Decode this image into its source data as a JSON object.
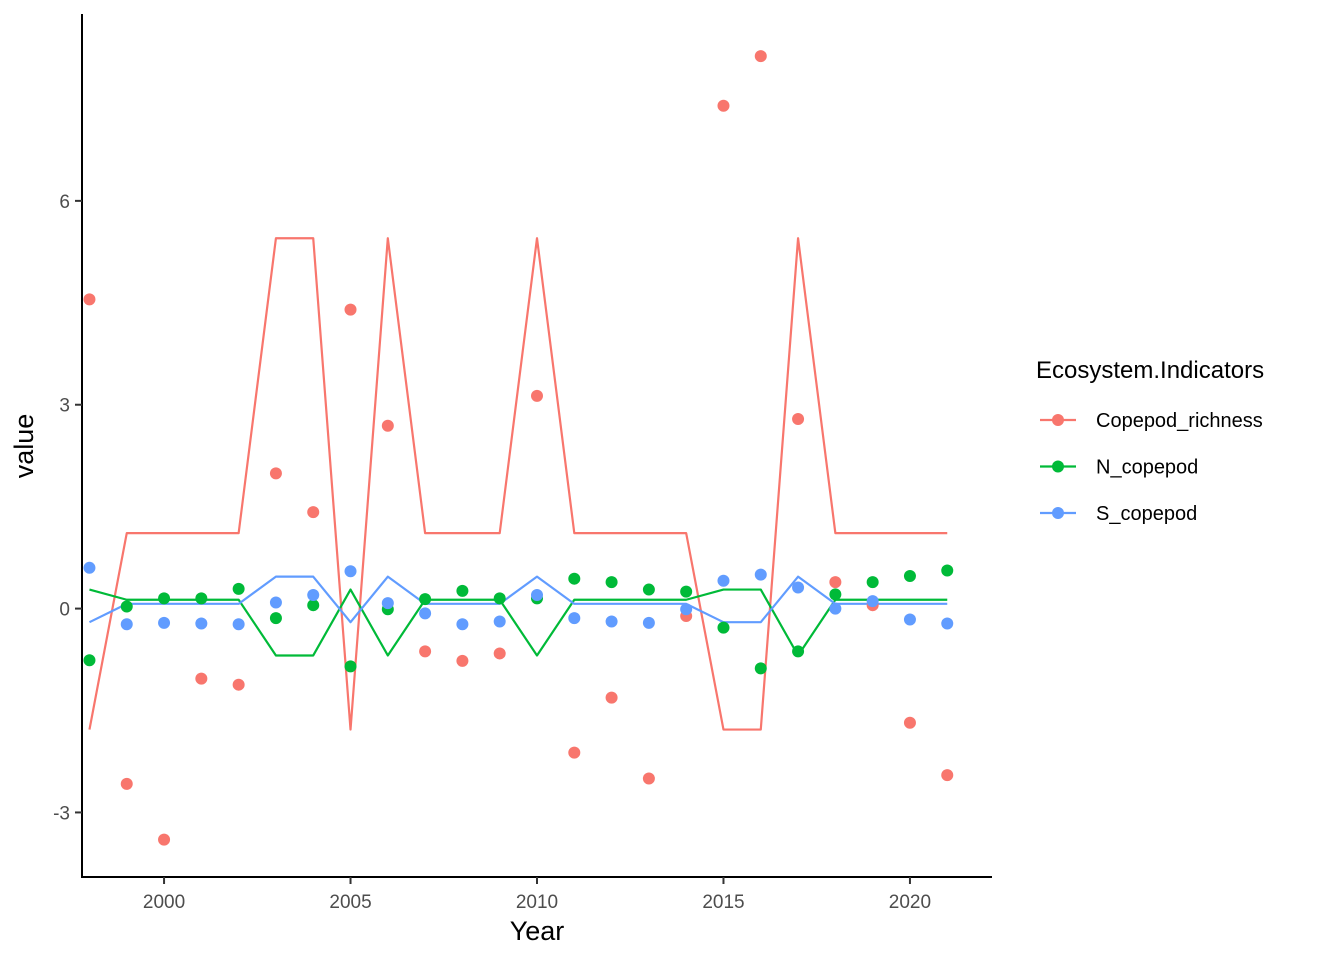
{
  "chart_data": {
    "type": "scatter",
    "xlabel": "Year",
    "ylabel": "value",
    "xlim": [
      1997.8,
      2022.2
    ],
    "ylim": [
      -3.95,
      8.75
    ],
    "x_ticks": [
      2000,
      2005,
      2010,
      2015,
      2020
    ],
    "y_ticks": [
      -3,
      0,
      3,
      6
    ],
    "grid": false,
    "legend": {
      "title": "Ecosystem.Indicators",
      "position": "right"
    },
    "x": [
      1998,
      1999,
      2000,
      2001,
      2002,
      2003,
      2004,
      2005,
      2006,
      2007,
      2008,
      2009,
      2010,
      2011,
      2012,
      2013,
      2014,
      2015,
      2016,
      2017,
      2018,
      2019,
      2020,
      2021
    ],
    "series": [
      {
        "name": "Copepod_richness",
        "color": "#F8766D",
        "points": [
          4.55,
          -2.58,
          -3.4,
          -1.03,
          -1.12,
          1.99,
          1.42,
          4.4,
          2.69,
          -0.63,
          -0.77,
          -0.66,
          3.13,
          -2.12,
          -1.31,
          -2.5,
          -0.11,
          7.4,
          8.13,
          2.79,
          0.39,
          0.05,
          -1.68,
          -2.45
        ],
        "line": [
          -1.78,
          1.11,
          1.11,
          1.11,
          1.11,
          5.45,
          5.45,
          -1.78,
          5.45,
          1.11,
          1.11,
          1.11,
          5.45,
          1.11,
          1.11,
          1.11,
          1.11,
          -1.78,
          -1.78,
          5.45,
          1.11,
          1.11,
          1.11,
          1.11
        ]
      },
      {
        "name": "N_copepod",
        "color": "#00BA38",
        "points": [
          -0.76,
          0.03,
          0.15,
          0.15,
          0.29,
          -0.14,
          0.05,
          -0.85,
          -0.01,
          0.14,
          0.26,
          0.15,
          0.15,
          0.44,
          0.39,
          0.28,
          0.25,
          -0.28,
          -0.88,
          -0.63,
          0.21,
          0.39,
          0.48,
          0.56
        ],
        "line": [
          0.28,
          0.13,
          0.13,
          0.13,
          0.13,
          -0.69,
          -0.69,
          0.28,
          -0.69,
          0.13,
          0.13,
          0.13,
          -0.69,
          0.13,
          0.13,
          0.13,
          0.13,
          0.28,
          0.28,
          -0.69,
          0.13,
          0.13,
          0.13,
          0.13
        ]
      },
      {
        "name": "S_copepod",
        "color": "#619CFF",
        "points": [
          0.6,
          -0.23,
          -0.21,
          -0.22,
          -0.23,
          0.09,
          0.2,
          0.55,
          0.08,
          -0.07,
          -0.23,
          -0.19,
          0.2,
          -0.14,
          -0.19,
          -0.21,
          -0.01,
          0.41,
          0.5,
          0.31,
          0.0,
          0.11,
          -0.16,
          -0.22
        ],
        "line": [
          -0.2,
          0.07,
          0.07,
          0.07,
          0.07,
          0.47,
          0.47,
          -0.2,
          0.47,
          0.07,
          0.07,
          0.07,
          0.47,
          0.07,
          0.07,
          0.07,
          0.07,
          -0.2,
          -0.2,
          0.47,
          0.07,
          0.07,
          0.07,
          0.07
        ]
      }
    ]
  }
}
